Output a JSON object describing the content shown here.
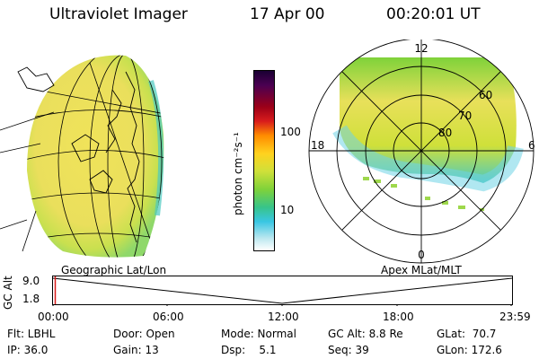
{
  "header": {
    "instrument": "Ultraviolet Imager",
    "date": "17 Apr 00",
    "time": "00:20:01 UT"
  },
  "colorbar": {
    "unit_label": "photon cm⁻²s⁻¹",
    "tick_labels": [
      "100",
      "10"
    ],
    "stops": [
      "#1a0033",
      "#4b0052",
      "#9b0018",
      "#d81c1c",
      "#ff8c00",
      "#ffd21e",
      "#cfe03a",
      "#7fd23a",
      "#37c48a",
      "#39c6e3",
      "#b9e7ef",
      "#ffffff"
    ]
  },
  "left_map": {
    "caption": "Geographic Lat/Lon"
  },
  "right_map": {
    "caption": "Apex MLat/MLT",
    "mlt_labels": {
      "top": "12",
      "left": "18",
      "right": "6",
      "bottom": "0"
    },
    "lat_labels": [
      "60",
      "70",
      "80"
    ]
  },
  "timeline": {
    "y_axis_label": "GC Alt",
    "y_ticks": [
      "9.0",
      "1.8"
    ],
    "x_ticks": [
      "00:00",
      "06:00",
      "12:00",
      "18:00",
      "23:59"
    ],
    "marker_color": "#d81c1c"
  },
  "info": {
    "flt": "Flt: LBHL",
    "ip": "IP: 36.0",
    "door": "Door: Open",
    "gain": "Gain: 13",
    "mode": "Mode: Normal",
    "dsp": "Dsp:    5.1",
    "gc_alt": "GC Alt: 8.8 Re",
    "seq": "Seq: 39",
    "glat": "GLat:  70.7",
    "glon": "GLon: 172.6"
  }
}
